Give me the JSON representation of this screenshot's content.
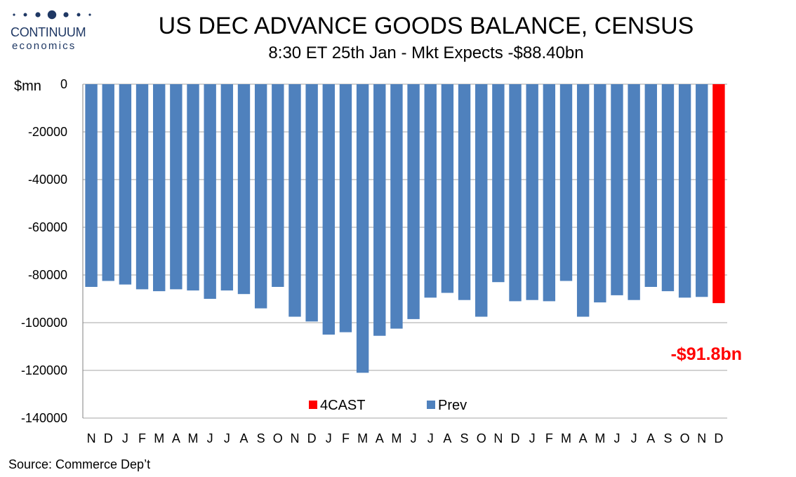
{
  "logo": {
    "name": "CONTINUUM",
    "tagline": "economics",
    "color": "#1f3864"
  },
  "chart_data": {
    "type": "bar",
    "title": "US DEC ADVANCE GOODS BALANCE, CENSUS",
    "subtitle": "8:30 ET 25th Jan - Mkt Expects -$88.40bn",
    "ylabel": "$mn",
    "xlabel": "",
    "ylim": [
      -140000,
      0
    ],
    "yticks": [
      0,
      -20000,
      -40000,
      -60000,
      -80000,
      -100000,
      -120000,
      -140000
    ],
    "grid": true,
    "legend_position": "bottom-center",
    "categories": [
      "N",
      "D",
      "J",
      "F",
      "M",
      "A",
      "M",
      "J",
      "J",
      "A",
      "S",
      "O",
      "N",
      "D",
      "J",
      "F",
      "M",
      "A",
      "M",
      "J",
      "J",
      "A",
      "S",
      "O",
      "N",
      "D",
      "J",
      "F",
      "M",
      "A",
      "M",
      "J",
      "J",
      "A",
      "S",
      "O",
      "N",
      "D"
    ],
    "series": [
      {
        "name": "4CAST",
        "color": "#ff0000",
        "values": [
          null,
          null,
          null,
          null,
          null,
          null,
          null,
          null,
          null,
          null,
          null,
          null,
          null,
          null,
          null,
          null,
          null,
          null,
          null,
          null,
          null,
          null,
          null,
          null,
          null,
          null,
          null,
          null,
          null,
          null,
          null,
          null,
          null,
          null,
          null,
          null,
          null,
          -91800
        ]
      },
      {
        "name": "Prev",
        "color": "#4f81bd",
        "values": [
          -85000,
          -82500,
          -84000,
          -86000,
          -86800,
          -86000,
          -86500,
          -90000,
          -86500,
          -88000,
          -94000,
          -85000,
          -97500,
          -99500,
          -105000,
          -104000,
          -121000,
          -105500,
          -102500,
          -98500,
          -89500,
          -87500,
          -90500,
          -97500,
          -83000,
          -91000,
          -90500,
          -91000,
          -82500,
          -97500,
          -91500,
          -88500,
          -90500,
          -85000,
          -86800,
          -89500,
          -89200,
          null
        ]
      }
    ],
    "annotations": [
      {
        "text": "-$91.8bn",
        "color": "#ff0000"
      }
    ]
  },
  "source": "Source: Commerce Dep’t"
}
